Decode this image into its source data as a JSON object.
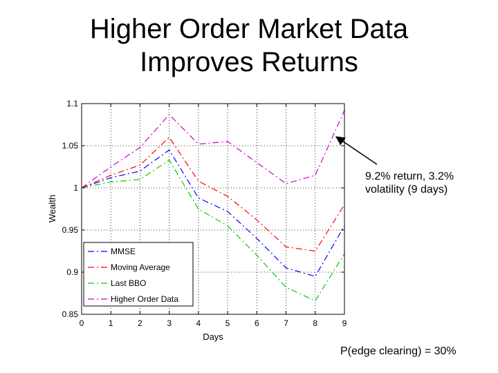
{
  "slide": {
    "title_line1": "Higher Order Market Data",
    "title_line2": "Improves Returns",
    "annotation_line1": "9.2% return, 3.2%",
    "annotation_line2": "volatility (9 days)",
    "footnote": "P(edge clearing) = 30%"
  },
  "chart_data": {
    "type": "line",
    "title": "",
    "xlabel": "Days",
    "ylabel": "Wealth",
    "xlim": [
      0,
      9
    ],
    "ylim": [
      0.85,
      1.1
    ],
    "xticks": [
      0,
      1,
      2,
      3,
      4,
      5,
      6,
      7,
      8,
      9
    ],
    "yticks": [
      0.85,
      0.9,
      0.95,
      1,
      1.05,
      1.1
    ],
    "grid": true,
    "legend_position": "lower-left",
    "x": [
      0,
      1,
      2,
      3,
      4,
      5,
      6,
      7,
      8,
      9
    ],
    "series": [
      {
        "name": "MMSE",
        "color": "#0000ff",
        "dash": "9 4 2 4",
        "values": [
          1.0,
          1.012,
          1.02,
          1.045,
          0.988,
          0.972,
          0.94,
          0.905,
          0.895,
          0.955
        ]
      },
      {
        "name": "Moving Average",
        "color": "#ff0000",
        "dash": "9 4 2 4",
        "values": [
          1.0,
          1.015,
          1.027,
          1.06,
          1.008,
          0.99,
          0.962,
          0.93,
          0.925,
          0.98
        ]
      },
      {
        "name": "Last BBO",
        "color": "#00cc00",
        "dash": "9 4 2 4",
        "values": [
          1.0,
          1.007,
          1.01,
          1.033,
          0.975,
          0.955,
          0.92,
          0.882,
          0.866,
          0.922
        ]
      },
      {
        "name": "Higher Order Data",
        "color": "#cc00cc",
        "dash": "9 4 2 4",
        "values": [
          1.0,
          1.025,
          1.048,
          1.087,
          1.052,
          1.055,
          1.03,
          1.005,
          1.015,
          1.092
        ]
      }
    ]
  }
}
